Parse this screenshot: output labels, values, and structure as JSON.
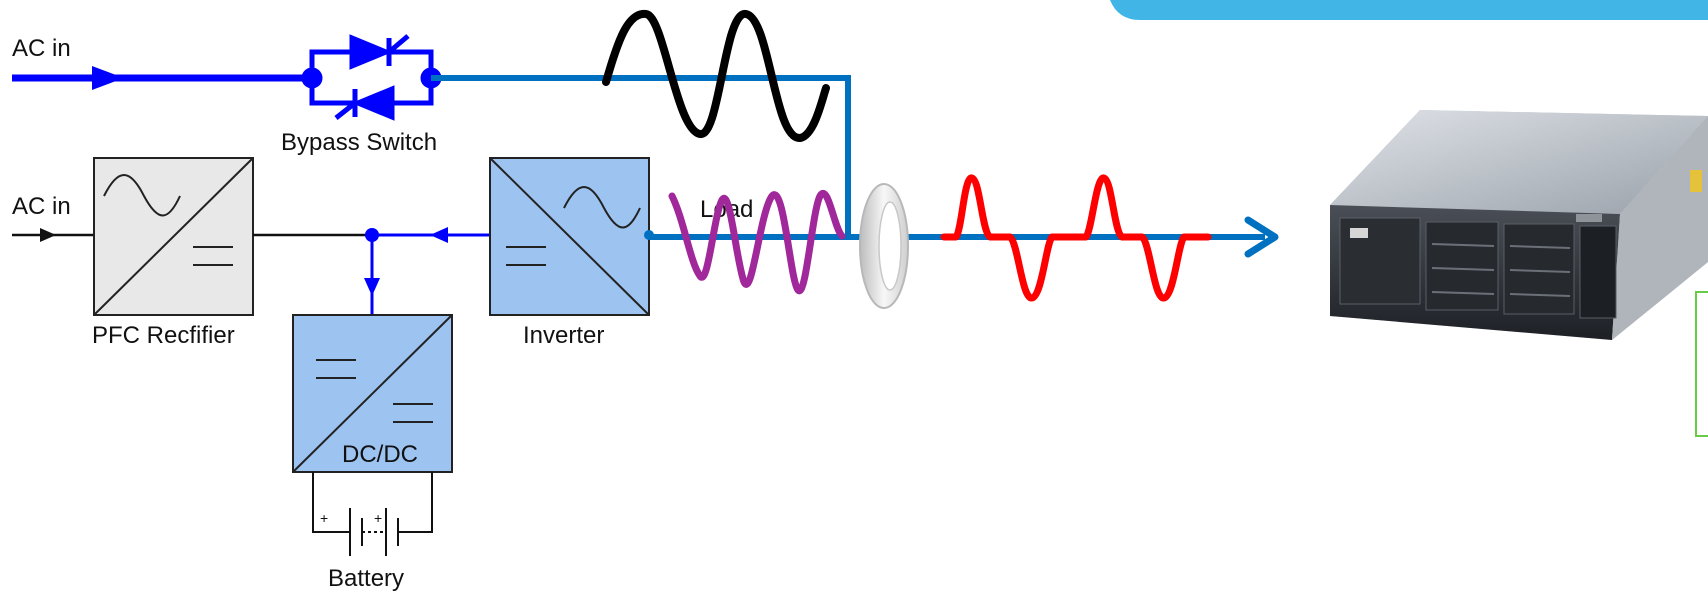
{
  "labels": {
    "ac_in_top": "AC in",
    "ac_in_mid": "AC in",
    "bypass_switch": "Bypass Switch",
    "pfc_rectifier": "PFC Recfifier",
    "inverter": "Inverter",
    "dcdc": "DC/DC",
    "battery": "Battery",
    "load": "Load",
    "plus_1": "+",
    "plus_2": "+"
  },
  "colors": {
    "power_blue": "#0000ff",
    "output_blue": "#0070c0",
    "block_blue": "#9dc3f0",
    "block_gray": "#e8e8e8",
    "wave_black": "#000000",
    "wave_purple": "#a0289a",
    "wave_red": "#ff0000",
    "banner": "#41b6e6",
    "callout_border": "#66cc44"
  },
  "icons": {
    "bypass": "thyristor-pair-icon",
    "ct": "current-transformer-ring-icon",
    "server": "rack-server-icon",
    "battery": "battery-cells-icon"
  }
}
